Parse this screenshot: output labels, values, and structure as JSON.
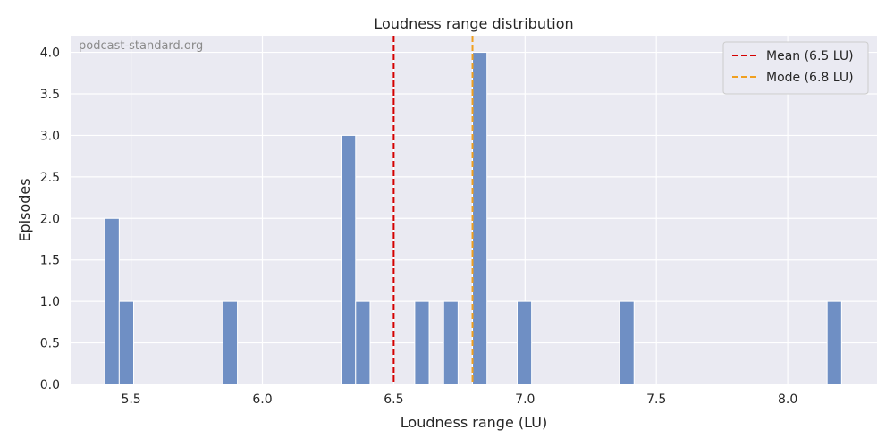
{
  "chart_data": {
    "type": "bar",
    "title": "Loudness range distribution",
    "xlabel": "Loudness range (LU)",
    "ylabel": "Episodes",
    "watermark": "podcast-standard.org",
    "xlim": [
      5.27,
      8.34
    ],
    "ylim": [
      0,
      4.2
    ],
    "xticks": [
      5.5,
      6.0,
      6.5,
      7.0,
      7.5,
      8.0
    ],
    "xtick_labels": [
      "5.5",
      "6.0",
      "6.5",
      "7.0",
      "7.5",
      "8.0"
    ],
    "yticks": [
      0,
      0.5,
      1,
      1.5,
      2,
      2.5,
      3,
      3.5,
      4
    ],
    "ytick_labels": [
      "0.0",
      "0.5",
      "1.0",
      "1.5",
      "2.0",
      "2.5",
      "3.0",
      "3.5",
      "4.0"
    ],
    "grid": true,
    "bar_color": "#6f8fc4",
    "bins": [
      {
        "x0": 5.4,
        "x1": 5.455,
        "count": 2
      },
      {
        "x0": 5.455,
        "x1": 5.51,
        "count": 1
      },
      {
        "x0": 5.85,
        "x1": 5.905,
        "count": 1
      },
      {
        "x0": 6.3,
        "x1": 6.355,
        "count": 3
      },
      {
        "x0": 6.355,
        "x1": 6.41,
        "count": 1
      },
      {
        "x0": 6.58,
        "x1": 6.635,
        "count": 1
      },
      {
        "x0": 6.69,
        "x1": 6.745,
        "count": 1
      },
      {
        "x0": 6.8,
        "x1": 6.855,
        "count": 4
      },
      {
        "x0": 6.97,
        "x1": 7.025,
        "count": 1
      },
      {
        "x0": 7.36,
        "x1": 7.415,
        "count": 1
      },
      {
        "x0": 8.15,
        "x1": 8.205,
        "count": 1
      }
    ],
    "reference_lines": [
      {
        "name": "Mean (6.5 LU)",
        "x": 6.5,
        "color": "#d40000"
      },
      {
        "name": "Mode (6.8 LU)",
        "x": 6.8,
        "color": "#f0a020"
      }
    ],
    "legend_position": "top-right"
  }
}
